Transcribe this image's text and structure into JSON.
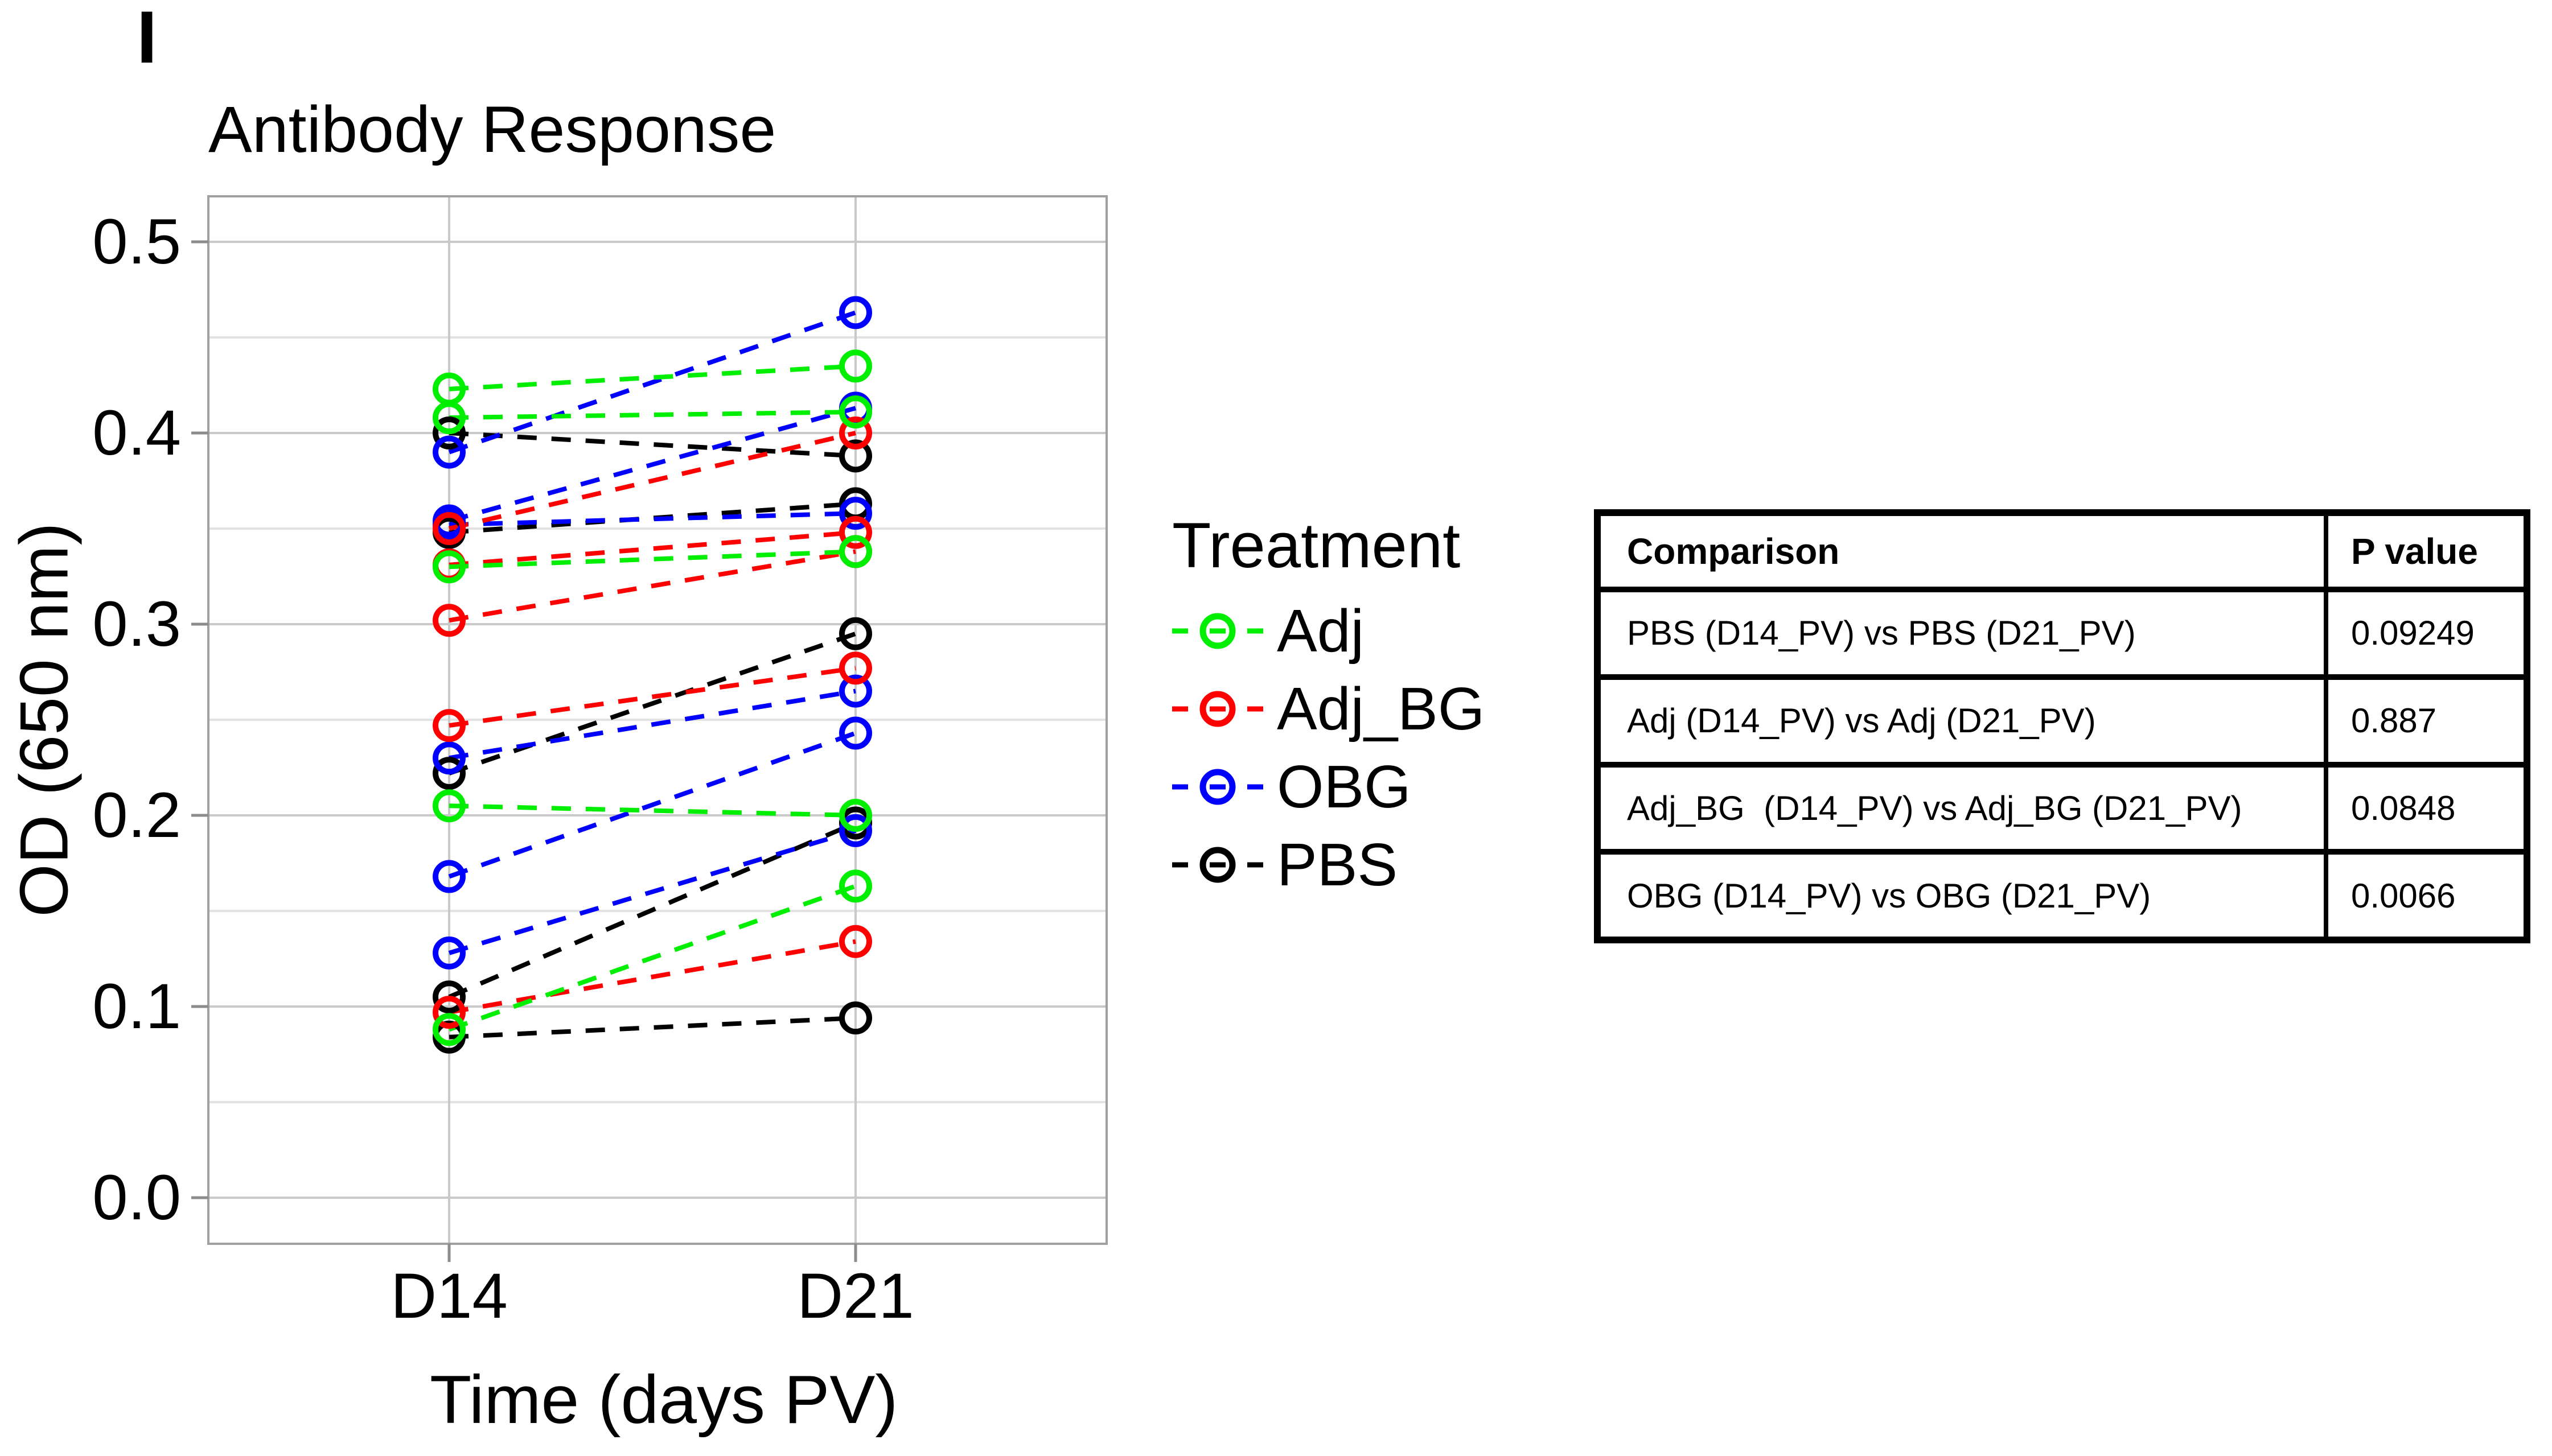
{
  "panel_label": "I",
  "chart_data": {
    "type": "line",
    "subtype": "paired-slope-chart",
    "title": "Antibody Response",
    "xlabel": "Time (days PV)",
    "ylabel": "OD (650 nm)",
    "x_categories": [
      "D14",
      "D21"
    ],
    "y_ticks": [
      "0.0",
      "0.1",
      "0.2",
      "0.3",
      "0.4",
      "0.5"
    ],
    "ylim": [
      -0.024,
      0.524
    ],
    "grid": "major and minor horizontal gridlines, vertical gridline at each category",
    "line_style": "dashed",
    "marker": "open-circle",
    "legend_position": "right",
    "series": [
      {
        "name": "PBS",
        "color": "#000000",
        "pairs": [
          [
            0.4,
            0.388
          ],
          [
            0.348,
            0.363
          ],
          [
            0.222,
            0.295
          ],
          [
            0.105,
            0.196
          ],
          [
            0.084,
            0.094
          ]
        ]
      },
      {
        "name": "OBG",
        "color": "#0000FF",
        "pairs": [
          [
            0.39,
            0.463
          ],
          [
            0.354,
            0.413
          ],
          [
            0.352,
            0.358
          ],
          [
            0.23,
            0.265
          ],
          [
            0.168,
            0.243
          ],
          [
            0.128,
            0.192
          ]
        ]
      },
      {
        "name": "Adj_BG",
        "color": "#FF0000",
        "pairs": [
          [
            0.35,
            0.4
          ],
          [
            0.331,
            0.348
          ],
          [
            0.302,
            0.338
          ],
          [
            0.247,
            0.277
          ],
          [
            0.097,
            0.134
          ]
        ]
      },
      {
        "name": "Adj",
        "color": "#00EE00",
        "pairs": [
          [
            0.423,
            0.435
          ],
          [
            0.408,
            0.411
          ],
          [
            0.33,
            0.338
          ],
          [
            0.205,
            0.2
          ],
          [
            0.088,
            0.163
          ]
        ]
      }
    ]
  },
  "legend": {
    "title": "Treatment",
    "items": [
      {
        "label": "Adj",
        "color": "#00EE00"
      },
      {
        "label": "Adj_BG",
        "color": "#FF0000"
      },
      {
        "label": "OBG",
        "color": "#0000FF"
      },
      {
        "label": "PBS",
        "color": "#000000"
      }
    ]
  },
  "table": {
    "headers": [
      "Comparison",
      "P value"
    ],
    "rows": [
      [
        "PBS (D14_PV) vs PBS (D21_PV)",
        "0.09249"
      ],
      [
        "Adj (D14_PV) vs Adj (D21_PV)",
        "0.887"
      ],
      [
        "Adj_BG  (D14_PV) vs Adj_BG (D21_PV)",
        "0.0848"
      ],
      [
        "OBG (D14_PV) vs OBG (D21_PV)",
        "0.0066"
      ]
    ]
  },
  "style_colors": {
    "major_grid": "#C9C9C9",
    "minor_grid": "#E2E2E2",
    "panel_border": "#A0A0A0",
    "tick_mark": "#8C8C8C"
  }
}
